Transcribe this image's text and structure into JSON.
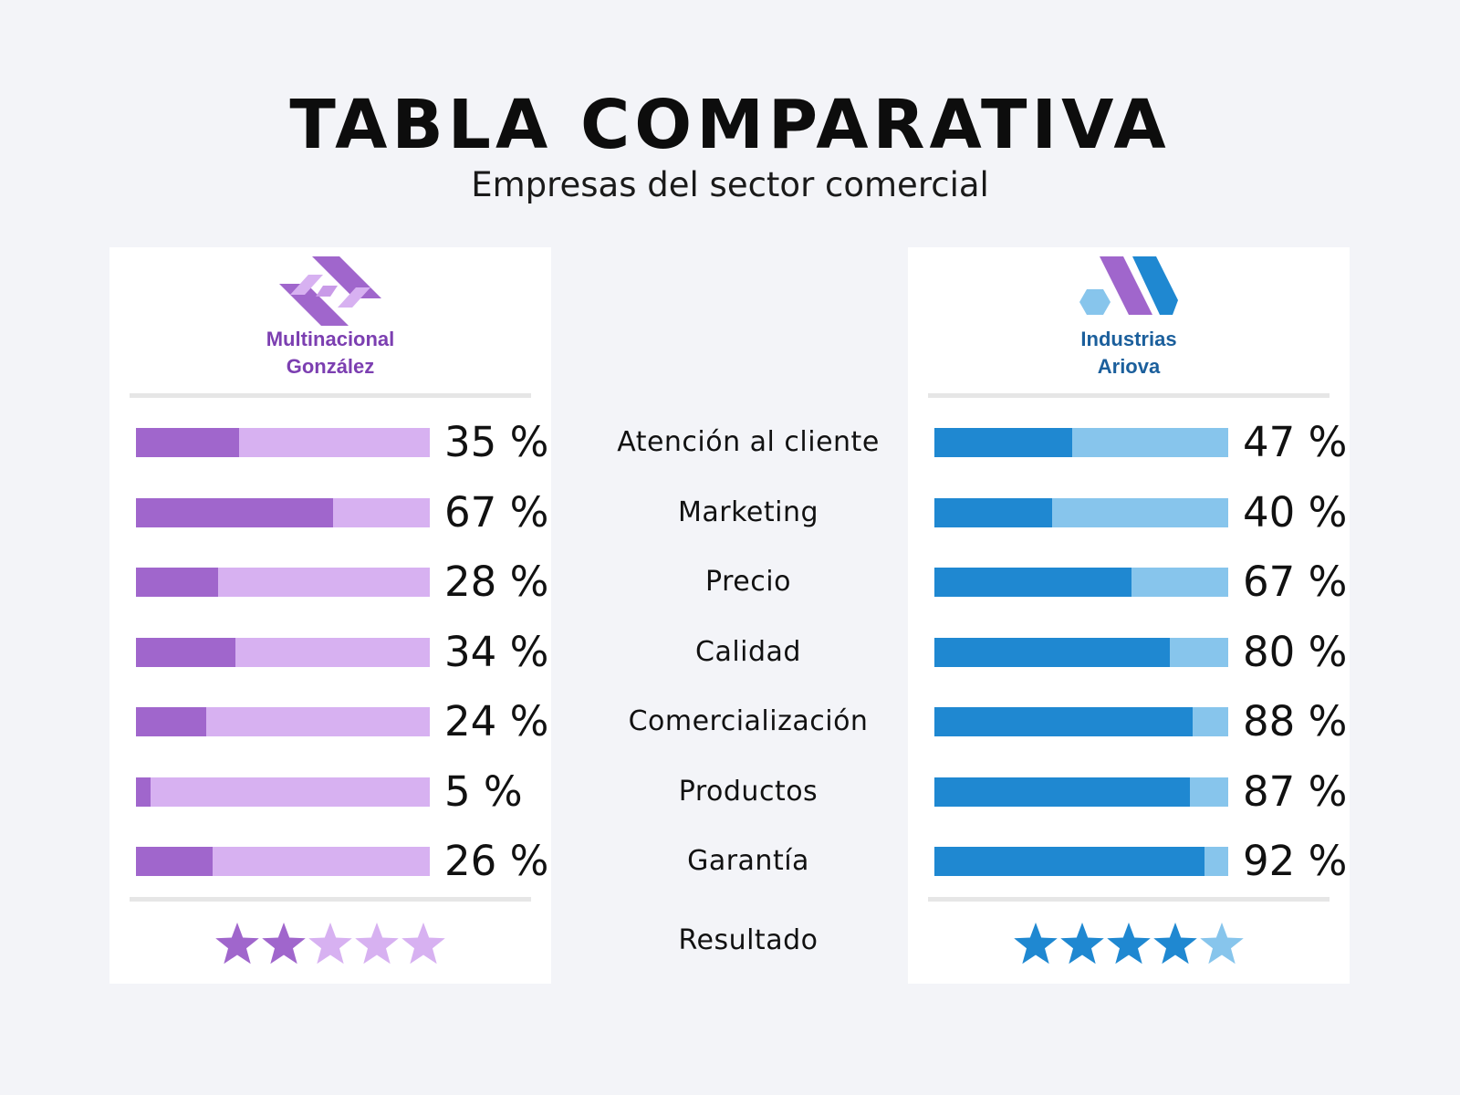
{
  "header": {
    "title": "TABLA COMPARATIVA",
    "subtitle": "Empresas del sector comercial"
  },
  "colors": {
    "background": "#f3f4f8",
    "purple_dark": "#a066cc",
    "purple_light": "#d7b1f1",
    "purple_text": "#7c3fb1",
    "blue_dark": "#1f88d1",
    "blue_light": "#87c5ec",
    "blue_text": "#1b5f9c"
  },
  "chart_data": {
    "type": "bar",
    "categories": [
      "Atención al cliente",
      "Marketing",
      "Precio",
      "Calidad",
      "Comercialización",
      "Productos",
      "Garantía"
    ],
    "series": [
      {
        "name": "Multinacional González",
        "values": [
          35,
          67,
          28,
          34,
          24,
          5,
          26
        ],
        "labels": [
          "35 %",
          "67 %",
          "28 %",
          "34 %",
          "24 %",
          "5 %",
          "26 %"
        ]
      },
      {
        "name": "Industrias Ariova",
        "values": [
          47,
          40,
          67,
          80,
          88,
          87,
          92
        ],
        "labels": [
          "47 %",
          "40 %",
          "67 %",
          "80 %",
          "88 %",
          "87 %",
          "92 %"
        ]
      }
    ],
    "ylim": [
      0,
      100
    ],
    "result_label": "Resultado",
    "ratings": {
      "max": 5,
      "Multinacional González": 2,
      "Industrias Ariova": 4
    }
  },
  "companies": {
    "left": {
      "line1": "Multinacional",
      "line2": "González",
      "logo_icon": "ribbon-logo-icon"
    },
    "right": {
      "line1": "Industrias",
      "line2": "Ariova",
      "logo_icon": "m-logo-icon"
    }
  }
}
